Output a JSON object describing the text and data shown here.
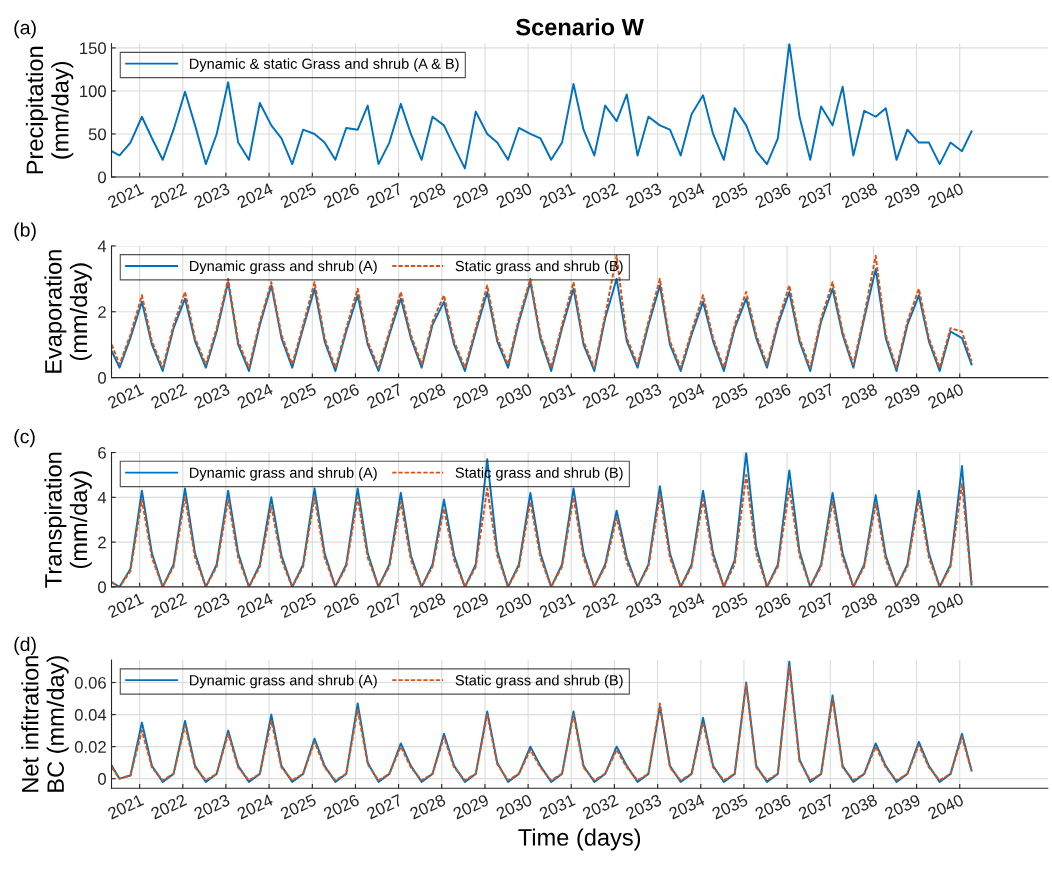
{
  "chart_data": [
    {
      "type": "line",
      "title": "Scenario W",
      "ylabel": "Precipitation\n(mm/day)",
      "annotations": [
        "(a)"
      ],
      "legend": "top left",
      "grid": true,
      "xlim": [
        "2020-05-08",
        "2042-01-15"
      ],
      "xticks": [
        "2021",
        "2022",
        "2023",
        "2024",
        "2025",
        "2026",
        "2027",
        "2028",
        "2029",
        "2030",
        "2031",
        "2032",
        "2033",
        "2034",
        "2035",
        "2036",
        "2037",
        "2038",
        "2039",
        "2040"
      ],
      "ylim": [
        0,
        155
      ],
      "yticks": [
        0,
        50,
        100,
        150
      ],
      "x": [
        "2020-05-10",
        "2020-07-15",
        "2020-10-15",
        "2021-01-20",
        "2021-04-15",
        "2021-07-15",
        "2021-10-15",
        "2022-01-20",
        "2022-04-15",
        "2022-07-15",
        "2022-10-15",
        "2023-01-20",
        "2023-04-15",
        "2023-07-15",
        "2023-10-15",
        "2024-01-20",
        "2024-04-15",
        "2024-07-15",
        "2024-10-15",
        "2025-01-20",
        "2025-04-15",
        "2025-07-15",
        "2025-10-15",
        "2026-01-20",
        "2026-04-15",
        "2026-07-15",
        "2026-10-15",
        "2027-01-20",
        "2027-04-15",
        "2027-07-15",
        "2027-10-15",
        "2028-01-20",
        "2028-04-15",
        "2028-07-15",
        "2028-10-15",
        "2029-01-20",
        "2029-04-15",
        "2029-07-15",
        "2029-10-15",
        "2030-01-20",
        "2030-04-15",
        "2030-07-15",
        "2030-10-15",
        "2031-01-20",
        "2031-04-15",
        "2031-07-15",
        "2031-10-15",
        "2032-01-20",
        "2032-04-15",
        "2032-07-15",
        "2032-10-15",
        "2033-01-20",
        "2033-04-15",
        "2033-07-15",
        "2033-10-15",
        "2034-01-20",
        "2034-04-15",
        "2034-07-15",
        "2034-10-15",
        "2035-01-20",
        "2035-04-15",
        "2035-07-15",
        "2035-10-15",
        "2036-01-20",
        "2036-04-15",
        "2036-07-15",
        "2036-10-15",
        "2037-01-20",
        "2037-04-15",
        "2037-07-15",
        "2037-10-15",
        "2038-01-20",
        "2038-04-15",
        "2038-07-15",
        "2038-10-15",
        "2039-01-20",
        "2039-04-15",
        "2039-07-15",
        "2039-10-15",
        "2040-01-20",
        "2040-04-10"
      ],
      "series": [
        {
          "name": "Dynamic & static Grass and shrub (A & B)",
          "color": "#0072bd",
          "line_style": "solid",
          "values": [
            30,
            25,
            40,
            70,
            45,
            20,
            55,
            99,
            60,
            15,
            50,
            110,
            40,
            20,
            86,
            60,
            45,
            15,
            55,
            50,
            40,
            20,
            57,
            55,
            83,
            15,
            40,
            85,
            50,
            20,
            70,
            60,
            35,
            10,
            76,
            50,
            40,
            20,
            57,
            50,
            45,
            20,
            40,
            108,
            55,
            25,
            83,
            65,
            96,
            25,
            70,
            60,
            55,
            25,
            73,
            95,
            50,
            20,
            80,
            60,
            30,
            15,
            45,
            155,
            70,
            20,
            82,
            60,
            105,
            25,
            77,
            70,
            80,
            20,
            55,
            40,
            40,
            15,
            40,
            30,
            53
          ]
        }
      ]
    },
    {
      "type": "line",
      "ylabel": "Evaporation\n(mm/day)",
      "annotations": [
        "(b)"
      ],
      "legend": "top left",
      "grid": true,
      "xlim": [
        "2020-05-08",
        "2042-01-15"
      ],
      "xticks": [
        "2021",
        "2022",
        "2023",
        "2024",
        "2025",
        "2026",
        "2027",
        "2028",
        "2029",
        "2030",
        "2031",
        "2032",
        "2033",
        "2034",
        "2035",
        "2036",
        "2037",
        "2038",
        "2039",
        "2040"
      ],
      "ylim": [
        0,
        4
      ],
      "yticks": [
        0,
        2,
        4
      ],
      "x": [
        "2020-05-10",
        "2020-07-15",
        "2020-10-15",
        "2021-01-20",
        "2021-04-15",
        "2021-07-15",
        "2021-10-15",
        "2022-01-20",
        "2022-04-15",
        "2022-07-15",
        "2022-10-15",
        "2023-01-20",
        "2023-04-15",
        "2023-07-15",
        "2023-10-15",
        "2024-01-20",
        "2024-04-15",
        "2024-07-15",
        "2024-10-15",
        "2025-01-20",
        "2025-04-15",
        "2025-07-15",
        "2025-10-15",
        "2026-01-20",
        "2026-04-15",
        "2026-07-15",
        "2026-10-15",
        "2027-01-20",
        "2027-04-15",
        "2027-07-15",
        "2027-10-15",
        "2028-01-20",
        "2028-04-15",
        "2028-07-15",
        "2028-10-15",
        "2029-01-20",
        "2029-04-15",
        "2029-07-15",
        "2029-10-15",
        "2030-01-20",
        "2030-04-15",
        "2030-07-15",
        "2030-10-15",
        "2031-01-20",
        "2031-04-15",
        "2031-07-15",
        "2031-10-15",
        "2032-01-20",
        "2032-04-15",
        "2032-07-15",
        "2032-10-15",
        "2033-01-20",
        "2033-04-15",
        "2033-07-15",
        "2033-10-15",
        "2034-01-20",
        "2034-04-15",
        "2034-07-15",
        "2034-10-15",
        "2035-01-20",
        "2035-04-15",
        "2035-07-15",
        "2035-10-15",
        "2036-01-20",
        "2036-04-15",
        "2036-07-15",
        "2036-10-15",
        "2037-01-20",
        "2037-04-15",
        "2037-07-15",
        "2037-10-15",
        "2038-01-20",
        "2038-04-15",
        "2038-07-15",
        "2038-10-15",
        "2039-01-20",
        "2039-04-15",
        "2039-07-15",
        "2039-10-15",
        "2040-01-20",
        "2040-04-10"
      ],
      "series": [
        {
          "name": "Dynamic grass and shrub (A)",
          "color": "#0072bd",
          "line_style": "solid",
          "values": [
            0.8,
            0.3,
            1.2,
            2.3,
            1.0,
            0.2,
            1.5,
            2.4,
            1.1,
            0.3,
            1.4,
            2.9,
            1.0,
            0.2,
            1.6,
            2.8,
            1.2,
            0.3,
            1.5,
            2.7,
            1.1,
            0.2,
            1.4,
            2.5,
            1.0,
            0.2,
            1.3,
            2.4,
            1.2,
            0.3,
            1.6,
            2.3,
            1.0,
            0.2,
            1.4,
            2.6,
            1.1,
            0.3,
            1.7,
            2.9,
            1.2,
            0.2,
            1.5,
            2.7,
            1.0,
            0.2,
            1.8,
            3.0,
            1.1,
            0.3,
            1.6,
            2.8,
            1.0,
            0.2,
            1.3,
            2.3,
            1.1,
            0.2,
            1.5,
            2.4,
            1.2,
            0.3,
            1.6,
            2.6,
            1.1,
            0.2,
            1.7,
            2.7,
            1.3,
            0.3,
            1.8,
            3.3,
            1.2,
            0.2,
            1.6,
            2.5,
            1.1,
            0.2,
            1.4,
            1.2,
            0.4
          ]
        },
        {
          "name": "Static grass and shrub (B)",
          "color": "#d95319",
          "line_style": "dashed",
          "values": [
            1.0,
            0.4,
            1.3,
            2.5,
            1.1,
            0.3,
            1.6,
            2.6,
            1.2,
            0.4,
            1.5,
            3.0,
            1.1,
            0.3,
            1.7,
            2.9,
            1.3,
            0.4,
            1.6,
            2.9,
            1.2,
            0.3,
            1.5,
            2.7,
            1.1,
            0.3,
            1.4,
            2.6,
            1.3,
            0.4,
            1.7,
            2.5,
            1.1,
            0.3,
            1.5,
            2.8,
            1.2,
            0.4,
            1.8,
            3.0,
            1.3,
            0.3,
            1.6,
            2.9,
            1.1,
            0.3,
            1.9,
            3.7,
            1.2,
            0.4,
            1.7,
            3.0,
            1.1,
            0.3,
            1.4,
            2.5,
            1.2,
            0.3,
            1.6,
            2.6,
            1.3,
            0.4,
            1.7,
            2.8,
            1.2,
            0.3,
            1.8,
            2.9,
            1.4,
            0.4,
            1.9,
            3.7,
            1.3,
            0.3,
            1.7,
            2.7,
            1.2,
            0.3,
            1.5,
            1.4,
            0.5
          ]
        }
      ]
    },
    {
      "type": "line",
      "ylabel": "Transpiration\n(mm/day)",
      "annotations": [
        "(c)"
      ],
      "legend": "top left",
      "grid": true,
      "xlim": [
        "2020-05-08",
        "2042-01-15"
      ],
      "xticks": [
        "2021",
        "2022",
        "2023",
        "2024",
        "2025",
        "2026",
        "2027",
        "2028",
        "2029",
        "2030",
        "2031",
        "2032",
        "2033",
        "2034",
        "2035",
        "2036",
        "2037",
        "2038",
        "2039",
        "2040"
      ],
      "ylim": [
        0,
        6
      ],
      "yticks": [
        0,
        2,
        4,
        6
      ],
      "x": [
        "2020-05-10",
        "2020-07-15",
        "2020-10-15",
        "2021-01-20",
        "2021-04-15",
        "2021-07-15",
        "2021-10-15",
        "2022-01-20",
        "2022-04-15",
        "2022-07-15",
        "2022-10-15",
        "2023-01-20",
        "2023-04-15",
        "2023-07-15",
        "2023-10-15",
        "2024-01-20",
        "2024-04-15",
        "2024-07-15",
        "2024-10-15",
        "2025-01-20",
        "2025-04-15",
        "2025-07-15",
        "2025-10-15",
        "2026-01-20",
        "2026-04-15",
        "2026-07-15",
        "2026-10-15",
        "2027-01-20",
        "2027-04-15",
        "2027-07-15",
        "2027-10-15",
        "2028-01-20",
        "2028-04-15",
        "2028-07-15",
        "2028-10-15",
        "2029-01-20",
        "2029-04-15",
        "2029-07-15",
        "2029-10-15",
        "2030-01-20",
        "2030-04-15",
        "2030-07-15",
        "2030-10-15",
        "2031-01-20",
        "2031-04-15",
        "2031-07-15",
        "2031-10-15",
        "2032-01-20",
        "2032-04-15",
        "2032-07-15",
        "2032-10-15",
        "2033-01-20",
        "2033-04-15",
        "2033-07-15",
        "2033-10-15",
        "2034-01-20",
        "2034-04-15",
        "2034-07-15",
        "2034-10-15",
        "2035-01-20",
        "2035-04-15",
        "2035-07-15",
        "2035-10-15",
        "2036-01-20",
        "2036-04-15",
        "2036-07-15",
        "2036-10-15",
        "2037-01-20",
        "2037-04-15",
        "2037-07-15",
        "2037-10-15",
        "2038-01-20",
        "2038-04-15",
        "2038-07-15",
        "2038-10-15",
        "2039-01-20",
        "2039-04-15",
        "2039-07-15",
        "2039-10-15",
        "2040-01-20",
        "2040-04-10"
      ],
      "series": [
        {
          "name": "Dynamic grass and shrub (A)",
          "color": "#0072bd",
          "line_style": "solid",
          "values": [
            0.2,
            0.0,
            0.8,
            4.3,
            1.5,
            0.0,
            1.0,
            4.4,
            1.5,
            0.0,
            1.0,
            4.3,
            1.5,
            0.0,
            1.0,
            4.0,
            1.4,
            0.0,
            1.0,
            4.4,
            1.5,
            0.0,
            1.0,
            4.4,
            1.5,
            0.0,
            1.0,
            4.2,
            1.4,
            0.0,
            1.0,
            3.9,
            1.4,
            0.0,
            1.0,
            5.7,
            1.6,
            0.0,
            1.0,
            4.2,
            1.5,
            0.0,
            1.0,
            4.4,
            1.5,
            0.0,
            1.0,
            3.4,
            1.3,
            0.0,
            1.0,
            4.5,
            1.5,
            0.0,
            1.0,
            4.3,
            1.5,
            0.0,
            1.2,
            6.0,
            1.8,
            0.0,
            1.0,
            5.2,
            1.6,
            0.0,
            1.0,
            4.2,
            1.5,
            0.0,
            1.0,
            4.1,
            1.4,
            0.0,
            1.0,
            4.3,
            1.5,
            0.0,
            1.0,
            5.4,
            0.1
          ]
        },
        {
          "name": "Static grass and shrub (B)",
          "color": "#d95319",
          "line_style": "dashed",
          "values": [
            0.2,
            0.0,
            0.7,
            3.9,
            1.3,
            0.0,
            0.9,
            4.0,
            1.3,
            0.0,
            0.9,
            3.9,
            1.3,
            0.0,
            0.9,
            3.6,
            1.2,
            0.0,
            0.9,
            4.0,
            1.3,
            0.0,
            0.9,
            4.0,
            1.3,
            0.0,
            0.9,
            3.8,
            1.2,
            0.0,
            0.9,
            3.5,
            1.2,
            0.0,
            0.9,
            4.4,
            1.4,
            0.0,
            0.9,
            3.8,
            1.3,
            0.0,
            0.9,
            4.0,
            1.3,
            0.0,
            0.9,
            3.1,
            1.1,
            0.0,
            0.9,
            4.1,
            1.3,
            0.0,
            0.9,
            3.9,
            1.3,
            0.0,
            1.0,
            5.0,
            1.5,
            0.0,
            0.9,
            4.4,
            1.4,
            0.0,
            0.9,
            3.8,
            1.3,
            0.0,
            0.9,
            3.7,
            1.2,
            0.0,
            0.9,
            3.9,
            1.3,
            0.0,
            0.9,
            4.6,
            0.1
          ]
        }
      ]
    },
    {
      "type": "line",
      "xlabel": "Time (days)",
      "ylabel": "Net infitration\nBC (mm/day)",
      "annotations": [
        "(d)"
      ],
      "legend": "top left",
      "grid": true,
      "xlim": [
        "2020-05-08",
        "2042-01-15"
      ],
      "xticks": [
        "2021",
        "2022",
        "2023",
        "2024",
        "2025",
        "2026",
        "2027",
        "2028",
        "2029",
        "2030",
        "2031",
        "2032",
        "2033",
        "2034",
        "2035",
        "2036",
        "2037",
        "2038",
        "2039",
        "2040"
      ],
      "ylim": [
        -0.006,
        0.074
      ],
      "yticks": [
        0,
        0.02,
        0.04,
        0.06
      ],
      "x": [
        "2020-05-10",
        "2020-07-15",
        "2020-10-15",
        "2021-01-20",
        "2021-04-15",
        "2021-07-15",
        "2021-10-15",
        "2022-01-20",
        "2022-04-15",
        "2022-07-15",
        "2022-10-15",
        "2023-01-20",
        "2023-04-15",
        "2023-07-15",
        "2023-10-15",
        "2024-01-20",
        "2024-04-15",
        "2024-07-15",
        "2024-10-15",
        "2025-01-20",
        "2025-04-15",
        "2025-07-15",
        "2025-10-15",
        "2026-01-20",
        "2026-04-15",
        "2026-07-15",
        "2026-10-15",
        "2027-01-20",
        "2027-04-15",
        "2027-07-15",
        "2027-10-15",
        "2028-01-20",
        "2028-04-15",
        "2028-07-15",
        "2028-10-15",
        "2029-01-20",
        "2029-04-15",
        "2029-07-15",
        "2029-10-15",
        "2030-01-20",
        "2030-04-15",
        "2030-07-15",
        "2030-10-15",
        "2031-01-20",
        "2031-04-15",
        "2031-07-15",
        "2031-10-15",
        "2032-01-20",
        "2032-04-15",
        "2032-07-15",
        "2032-10-15",
        "2033-01-20",
        "2033-04-15",
        "2033-07-15",
        "2033-10-15",
        "2034-01-20",
        "2034-04-15",
        "2034-07-15",
        "2034-10-15",
        "2035-01-20",
        "2035-04-15",
        "2035-07-15",
        "2035-10-15",
        "2036-01-20",
        "2036-04-15",
        "2036-07-15",
        "2036-10-15",
        "2037-01-20",
        "2037-04-15",
        "2037-07-15",
        "2037-10-15",
        "2038-01-20",
        "2038-04-15",
        "2038-07-15",
        "2038-10-15",
        "2039-01-20",
        "2039-04-15",
        "2039-07-15",
        "2039-10-15",
        "2040-01-20",
        "2040-04-10"
      ],
      "series": [
        {
          "name": "Dynamic grass and shrub (A)",
          "color": "#0072bd",
          "line_style": "solid",
          "values": [
            0.008,
            0.0,
            0.002,
            0.035,
            0.008,
            -0.002,
            0.003,
            0.036,
            0.008,
            -0.002,
            0.003,
            0.03,
            0.008,
            -0.002,
            0.003,
            0.04,
            0.008,
            -0.002,
            0.003,
            0.025,
            0.008,
            -0.002,
            0.003,
            0.047,
            0.01,
            -0.002,
            0.003,
            0.022,
            0.008,
            -0.002,
            0.003,
            0.028,
            0.008,
            -0.002,
            0.003,
            0.042,
            0.01,
            -0.002,
            0.003,
            0.02,
            0.008,
            -0.002,
            0.003,
            0.042,
            0.008,
            -0.002,
            0.003,
            0.02,
            0.008,
            -0.002,
            0.003,
            0.045,
            0.008,
            -0.002,
            0.003,
            0.038,
            0.008,
            -0.002,
            0.003,
            0.06,
            0.008,
            -0.002,
            0.003,
            0.073,
            0.012,
            -0.002,
            0.003,
            0.052,
            0.008,
            -0.002,
            0.003,
            0.022,
            0.008,
            -0.002,
            0.003,
            0.023,
            0.008,
            -0.002,
            0.003,
            0.028,
            0.005
          ]
        },
        {
          "name": "Static grass and shrub (B)",
          "color": "#d95319",
          "line_style": "dashed",
          "values": [
            0.007,
            0.0,
            0.002,
            0.03,
            0.007,
            -0.001,
            0.003,
            0.033,
            0.007,
            -0.001,
            0.003,
            0.028,
            0.007,
            -0.001,
            0.003,
            0.036,
            0.007,
            -0.001,
            0.003,
            0.023,
            0.007,
            -0.001,
            0.003,
            0.043,
            0.009,
            -0.001,
            0.003,
            0.02,
            0.007,
            -0.001,
            0.003,
            0.026,
            0.007,
            -0.001,
            0.003,
            0.04,
            0.009,
            -0.001,
            0.003,
            0.018,
            0.007,
            -0.001,
            0.003,
            0.04,
            0.007,
            -0.001,
            0.003,
            0.018,
            0.007,
            -0.001,
            0.003,
            0.047,
            0.007,
            -0.001,
            0.003,
            0.035,
            0.007,
            -0.001,
            0.003,
            0.059,
            0.007,
            -0.001,
            0.003,
            0.07,
            0.011,
            -0.001,
            0.003,
            0.05,
            0.007,
            -0.001,
            0.003,
            0.02,
            0.007,
            -0.001,
            0.003,
            0.021,
            0.007,
            -0.001,
            0.003,
            0.026,
            0.005
          ]
        }
      ]
    }
  ]
}
